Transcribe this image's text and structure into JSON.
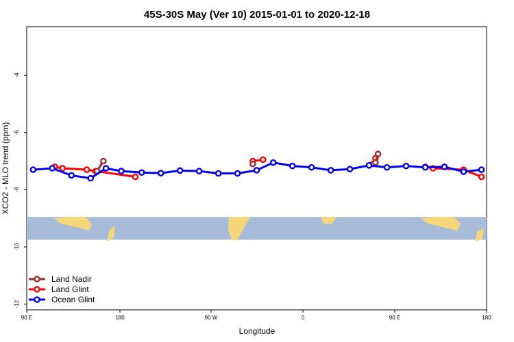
{
  "chart_data": {
    "type": "line",
    "title": "45S-30S May (Ver 10)   2015-01-01 to 2020-12-18",
    "xlabel": "Longitude",
    "ylabel": "XCO2 - MLO trend (ppm)",
    "xlim": [
      90,
      450
    ],
    "ylim": [
      -12.2,
      -2.3
    ],
    "x_ticks": [
      {
        "value": 90,
        "label": "90 E"
      },
      {
        "value": 180,
        "label": "180"
      },
      {
        "value": 270,
        "label": "90 W"
      },
      {
        "value": 360,
        "label": "0"
      },
      {
        "value": 450,
        "label": "90 E"
      },
      {
        "value": 540,
        "label": "180"
      }
    ],
    "x_tick_positions_note": "longitude axis spans two wraps; tick values in degrees of continuous longitude",
    "y_ticks": [
      -4,
      -6,
      -8,
      -10,
      -12
    ],
    "map_band": {
      "ocean_color": "#a8bcd9",
      "land_color": "#f5d77a",
      "y_top": -8.95,
      "y_bottom": -9.75
    },
    "legend_position": "bottom-left",
    "series": [
      {
        "name": "Land Nadir",
        "color": "#9b2d2d",
        "x": [
          145,
          150,
          267,
          363,
          365
        ],
        "y": [
          -7.35,
          -7.0,
          -7.1,
          -7.05,
          -6.75
        ]
      },
      {
        "name": "Land Glint",
        "color": "#ff0000",
        "x": [
          112,
          118,
          137,
          144,
          175,
          267,
          275,
          361,
          363,
          402,
          408,
          432,
          446
        ],
        "y": [
          -7.2,
          -7.25,
          -7.3,
          -7.35,
          -7.55,
          -7.0,
          -6.95,
          -7.1,
          -6.9,
          -7.2,
          -7.25,
          -7.3,
          -7.55
        ]
      },
      {
        "name": "Ocean Glint",
        "color": "#0000ee",
        "x": [
          95,
          110,
          125,
          140,
          152,
          164,
          180,
          195,
          210,
          225,
          240,
          255,
          270,
          283,
          298,
          313,
          328,
          343,
          358,
          372,
          387,
          402,
          417,
          432,
          446
        ],
        "y": [
          -7.3,
          -7.25,
          -7.5,
          -7.6,
          -7.25,
          -7.35,
          -7.4,
          -7.42,
          -7.33,
          -7.35,
          -7.43,
          -7.43,
          -7.32,
          -7.05,
          -7.17,
          -7.22,
          -7.32,
          -7.28,
          -7.15,
          -7.22,
          -7.17,
          -7.22,
          -7.2,
          -7.37,
          -7.3
        ]
      }
    ]
  }
}
